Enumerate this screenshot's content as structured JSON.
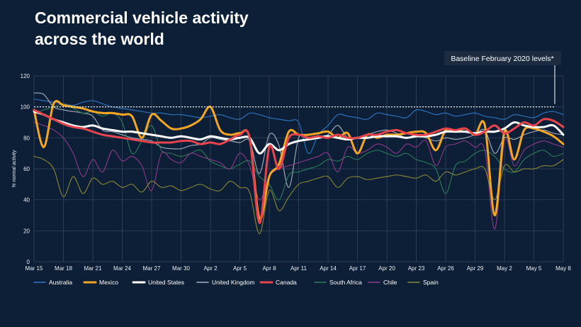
{
  "page": {
    "title_line1": "Commercial vehicle activity",
    "title_line2": "across the world"
  },
  "colors": {
    "background": "#0d1f36",
    "grid": "#2a3b52",
    "tick_label": "#e8edf3",
    "baseline": "#ffffff"
  },
  "chart_data": {
    "type": "line",
    "title": "Commercial vehicle activity across the world",
    "ylabel": "% normal activity",
    "xlabel": "",
    "ylim": [
      0,
      120
    ],
    "yticks": [
      0,
      20,
      40,
      60,
      80,
      100,
      120
    ],
    "xlim_days": [
      0,
      54
    ],
    "xtick_labels": [
      "Mar 15",
      "Mar 18",
      "Mar 21",
      "Mar 24",
      "Mar 27",
      "Mar 30",
      "Apr 2",
      "Apr 5",
      "Apr 8",
      "Apr 11",
      "Apr 14",
      "Apr 17",
      "Apr 20",
      "Apr 23",
      "Apr 26",
      "Apr 29",
      "May 2",
      "May 5",
      "May 8"
    ],
    "grid": true,
    "legend_position": "bottom",
    "baseline": {
      "value": 100,
      "label": "Baseline February 2020 levels*"
    },
    "series": [
      {
        "name": "Australia",
        "color": "#2f78c8",
        "width": 1.2,
        "x": [
          0,
          1,
          2,
          3,
          4,
          5,
          6,
          7,
          8,
          9,
          10,
          11,
          12,
          13,
          14,
          15,
          16,
          17,
          18,
          19,
          20,
          21,
          22,
          23,
          24,
          25,
          26,
          27,
          28,
          29,
          30,
          31,
          32,
          33,
          34,
          35,
          36,
          37,
          38,
          39,
          40,
          41,
          42,
          43,
          44,
          45,
          46,
          47,
          48,
          49,
          50,
          51,
          52,
          53,
          54
        ],
        "y": [
          105,
          104,
          103,
          102,
          101,
          103,
          104,
          102,
          100,
          99,
          98,
          97,
          96,
          96,
          95,
          95,
          94,
          93,
          94,
          95,
          93,
          92,
          96,
          95,
          93,
          92,
          91,
          90,
          70,
          82,
          88,
          95,
          94,
          93,
          92,
          96,
          95,
          94,
          93,
          98,
          97,
          95,
          96,
          94,
          95,
          96,
          94,
          93,
          92,
          95,
          94,
          93,
          96,
          97,
          95
        ]
      },
      {
        "name": "Mexico",
        "color": "#f5a623",
        "width": 3,
        "x": [
          0,
          1,
          2,
          3,
          4,
          5,
          6,
          7,
          8,
          9,
          10,
          11,
          12,
          13,
          14,
          15,
          16,
          17,
          18,
          19,
          20,
          21,
          22,
          23,
          24,
          25,
          26,
          27,
          28,
          29,
          30,
          31,
          32,
          33,
          34,
          35,
          36,
          37,
          38,
          39,
          40,
          41,
          42,
          43,
          44,
          45,
          46,
          47,
          48,
          49,
          50,
          51,
          52,
          53,
          54
        ],
        "y": [
          98,
          74,
          102,
          101,
          100,
          99,
          97,
          96,
          96,
          95,
          94,
          80,
          95,
          91,
          86,
          86,
          88,
          92,
          100,
          85,
          82,
          83,
          80,
          28,
          55,
          63,
          84,
          82,
          82,
          83,
          84,
          80,
          83,
          70,
          82,
          80,
          82,
          82,
          83,
          84,
          83,
          72,
          85,
          84,
          86,
          82,
          88,
          30,
          84,
          66,
          85,
          86,
          84,
          81,
          76
        ]
      },
      {
        "name": "United States",
        "color": "#ffffff",
        "width": 3,
        "x": [
          0,
          1,
          2,
          3,
          4,
          5,
          6,
          7,
          8,
          9,
          10,
          11,
          12,
          13,
          14,
          15,
          16,
          17,
          18,
          19,
          20,
          21,
          22,
          23,
          24,
          25,
          26,
          27,
          28,
          29,
          30,
          31,
          32,
          33,
          34,
          35,
          36,
          37,
          38,
          39,
          40,
          41,
          42,
          43,
          44,
          45,
          46,
          47,
          48,
          49,
          50,
          51,
          52,
          53,
          54
        ],
        "y": [
          97,
          95,
          92,
          90,
          88,
          87,
          88,
          86,
          85,
          84,
          84,
          83,
          82,
          81,
          80,
          81,
          80,
          79,
          81,
          80,
          79,
          80,
          80,
          70,
          76,
          72,
          76,
          78,
          79,
          80,
          81,
          80,
          79,
          80,
          80,
          81,
          81,
          81,
          80,
          81,
          81,
          82,
          84,
          84,
          84,
          83,
          84,
          84,
          86,
          90,
          88,
          87,
          87,
          88,
          82
        ]
      },
      {
        "name": "United Kingdom",
        "color": "#aab4c2",
        "width": 1.2,
        "x": [
          0,
          1,
          2,
          3,
          4,
          5,
          6,
          7,
          8,
          9,
          10,
          11,
          12,
          13,
          14,
          15,
          16,
          17,
          18,
          19,
          20,
          21,
          22,
          23,
          24,
          25,
          26,
          27,
          28,
          29,
          30,
          31,
          32,
          33,
          34,
          35,
          36,
          37,
          38,
          39,
          40,
          41,
          42,
          43,
          44,
          45,
          46,
          47,
          48,
          49,
          50,
          51,
          52,
          53,
          54
        ],
        "y": [
          109,
          108,
          100,
          98,
          97,
          96,
          94,
          85,
          84,
          82,
          80,
          79,
          78,
          74,
          73,
          73,
          75,
          76,
          80,
          79,
          78,
          77,
          78,
          57,
          82,
          75,
          48,
          80,
          80,
          81,
          82,
          88,
          80,
          80,
          82,
          84,
          85,
          83,
          80,
          82,
          80,
          78,
          80,
          79,
          80,
          82,
          85,
          70,
          80,
          79,
          82,
          84,
          85,
          83,
          82
        ]
      },
      {
        "name": "Canada",
        "color": "#e8444d",
        "width": 3,
        "x": [
          0,
          1,
          2,
          3,
          4,
          5,
          6,
          7,
          8,
          9,
          10,
          11,
          12,
          13,
          14,
          15,
          16,
          17,
          18,
          19,
          20,
          21,
          22,
          23,
          24,
          25,
          26,
          27,
          28,
          29,
          30,
          31,
          32,
          33,
          34,
          35,
          36,
          37,
          38,
          39,
          40,
          41,
          42,
          43,
          44,
          45,
          46,
          47,
          48,
          49,
          50,
          51,
          52,
          53,
          54
        ],
        "y": [
          98,
          95,
          92,
          89,
          87,
          86,
          84,
          82,
          81,
          80,
          79,
          78,
          77,
          77,
          77,
          78,
          78,
          76,
          77,
          76,
          79,
          82,
          80,
          25,
          74,
          60,
          80,
          82,
          80,
          81,
          80,
          82,
          80,
          80,
          82,
          82,
          84,
          85,
          83,
          82,
          82,
          84,
          86,
          85,
          86,
          82,
          84,
          88,
          83,
          86,
          90,
          88,
          92,
          91,
          87
        ]
      },
      {
        "name": "South Africa",
        "color": "#2e7d5b",
        "width": 1.2,
        "x": [
          0,
          1,
          2,
          3,
          4,
          5,
          6,
          7,
          8,
          9,
          10,
          11,
          12,
          13,
          14,
          15,
          16,
          17,
          18,
          19,
          20,
          21,
          22,
          23,
          24,
          25,
          26,
          27,
          28,
          29,
          30,
          31,
          32,
          33,
          34,
          35,
          36,
          37,
          38,
          39,
          40,
          41,
          42,
          43,
          44,
          45,
          46,
          47,
          48,
          49,
          50,
          51,
          52,
          53,
          54
        ],
        "y": [
          96,
          98,
          100,
          102,
          99,
          96,
          97,
          94,
          96,
          90,
          70,
          78,
          88,
          72,
          70,
          68,
          70,
          72,
          65,
          62,
          60,
          63,
          65,
          55,
          50,
          40,
          56,
          58,
          60,
          62,
          66,
          65,
          68,
          66,
          70,
          72,
          70,
          68,
          70,
          66,
          64,
          60,
          44,
          62,
          65,
          70,
          72,
          68,
          60,
          58,
          66,
          70,
          72,
          68,
          70
        ]
      },
      {
        "name": "Chile",
        "color": "#8e3a8c",
        "width": 1.2,
        "x": [
          0,
          1,
          2,
          3,
          4,
          5,
          6,
          7,
          8,
          9,
          10,
          11,
          12,
          13,
          14,
          15,
          16,
          17,
          18,
          19,
          20,
          21,
          22,
          23,
          24,
          25,
          26,
          27,
          28,
          29,
          30,
          31,
          32,
          33,
          34,
          35,
          36,
          37,
          38,
          39,
          40,
          41,
          42,
          43,
          44,
          45,
          46,
          47,
          48,
          49,
          50,
          51,
          52,
          53,
          54
        ],
        "y": [
          90,
          88,
          85,
          80,
          70,
          55,
          66,
          58,
          72,
          65,
          68,
          62,
          46,
          70,
          66,
          64,
          70,
          68,
          66,
          64,
          60,
          70,
          62,
          40,
          55,
          60,
          62,
          64,
          66,
          68,
          70,
          58,
          74,
          70,
          72,
          76,
          74,
          70,
          76,
          74,
          78,
          62,
          74,
          76,
          78,
          74,
          72,
          21,
          78,
          62,
          72,
          76,
          78,
          76,
          74
        ]
      },
      {
        "name": "Spain",
        "color": "#8b8a34",
        "width": 1.2,
        "x": [
          0,
          1,
          2,
          3,
          4,
          5,
          6,
          7,
          8,
          9,
          10,
          11,
          12,
          13,
          14,
          15,
          16,
          17,
          18,
          19,
          20,
          21,
          22,
          23,
          24,
          25,
          26,
          27,
          28,
          29,
          30,
          31,
          32,
          33,
          34,
          35,
          36,
          37,
          38,
          39,
          40,
          41,
          42,
          43,
          44,
          45,
          46,
          47,
          48,
          49,
          50,
          51,
          52,
          53,
          54
        ],
        "y": [
          68,
          66,
          60,
          42,
          55,
          44,
          54,
          50,
          52,
          48,
          50,
          45,
          52,
          48,
          49,
          46,
          48,
          50,
          47,
          46,
          52,
          48,
          45,
          18,
          46,
          33,
          42,
          50,
          52,
          54,
          55,
          48,
          54,
          55,
          53,
          54,
          55,
          56,
          55,
          54,
          56,
          52,
          58,
          56,
          58,
          60,
          60,
          40,
          62,
          58,
          60,
          60,
          62,
          62,
          66
        ]
      }
    ]
  }
}
